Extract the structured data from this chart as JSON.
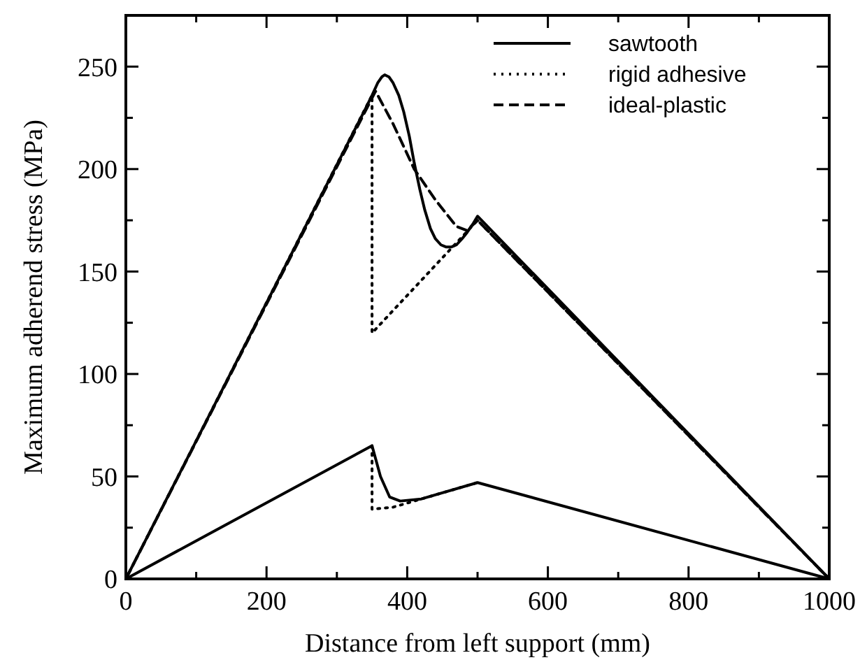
{
  "chart_data": {
    "type": "line",
    "xlabel": "Distance from left support (mm)",
    "ylabel": "Maximum adherend stress (MPa)",
    "xlim": [
      0,
      1000
    ],
    "ylim": [
      0,
      275
    ],
    "xticks": [
      0,
      {
        "value": 100,
        "label": null
      },
      200,
      {
        "value": 300,
        "label": null
      },
      400,
      {
        "value": 500,
        "label": null
      },
      600,
      {
        "value": 700,
        "label": null
      },
      800,
      {
        "value": 900,
        "label": null
      },
      1000
    ],
    "yticks": [
      0,
      {
        "value": 25,
        "label": null
      },
      50,
      {
        "value": 75,
        "label": null
      },
      100,
      {
        "value": 125,
        "label": null
      },
      150,
      {
        "value": 175,
        "label": null
      },
      200,
      {
        "value": 225,
        "label": null
      },
      250
    ],
    "legend": "top right",
    "grid": false,
    "series": [
      {
        "name": "sawtooth",
        "color": "#000000",
        "line_style": "solid",
        "x": [
          0,
          340,
          350,
          358,
          364,
          368,
          374,
          380,
          388,
          395,
          403,
          410,
          418,
          425,
          433,
          440,
          448,
          455,
          463,
          470,
          478,
          485,
          493,
          500,
          1000
        ],
        "values": [
          0,
          229,
          236,
          242,
          245,
          246,
          245,
          242,
          236,
          228,
          216,
          203,
          190,
          180,
          171,
          166,
          163,
          162,
          162,
          163,
          166,
          169,
          173,
          177,
          0
        ]
      },
      {
        "name": "rigid adhesive",
        "color": "#000000",
        "line_style": "dotted",
        "x": [
          0,
          350,
          350,
          500,
          1000
        ],
        "values": [
          0,
          236,
          120,
          175,
          0
        ]
      },
      {
        "name": "ideal-plastic",
        "color": "#000000",
        "line_style": "dashed",
        "x": [
          0,
          355,
          380,
          410,
          440,
          470,
          485,
          500,
          1000
        ],
        "values": [
          0,
          238,
          222,
          200,
          185,
          172,
          170,
          175,
          0
        ]
      },
      {
        "color": "#000000",
        "line_style": "solid",
        "x": [
          0,
          350,
          362,
          375,
          390,
          420,
          500,
          1000
        ],
        "values": [
          0,
          65,
          50,
          40,
          38,
          39,
          47,
          0
        ]
      },
      {
        "color": "#000000",
        "line_style": "dotted",
        "x": [
          350,
          350,
          380,
          500
        ],
        "values": [
          65,
          34,
          35,
          47
        ]
      }
    ]
  }
}
